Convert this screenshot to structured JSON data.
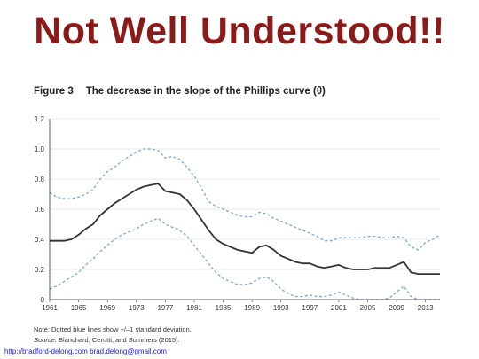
{
  "slide": {
    "title": "Not Well Understood!!"
  },
  "figure": {
    "number": "Figure 3",
    "caption": "The decrease in the slope of the Phillips curve (θ)",
    "note": "Note: Dotted  blue lines show +/–1 standard deviation.",
    "source_label": "Source:",
    "source_text": " Blanchard, Cerutti, and Summers (2015)."
  },
  "footer": {
    "link1": "http://bradford-delong.com",
    "link2": "brad.delong@gmail.com"
  },
  "chart_data": {
    "type": "line",
    "title": "",
    "xlabel": "",
    "ylabel": "",
    "xlim": [
      1961,
      2015
    ],
    "ylim": [
      0,
      1.2
    ],
    "grid": true,
    "x_ticks": [
      "1961",
      "1965",
      "1969",
      "1973",
      "1977",
      "1981",
      "1985",
      "1989",
      "1993",
      "1997",
      "2001",
      "2005",
      "2009",
      "2013"
    ],
    "y_ticks": [
      "0",
      "0.2",
      "0.4",
      "0.6",
      "0.8",
      "1.0",
      "1.2"
    ],
    "colors": {
      "estimate": "#333333",
      "bands": "#7aa8d6"
    },
    "series": [
      {
        "role": "estimate",
        "x": [
          1961,
          1962,
          1963,
          1964,
          1965,
          1966,
          1967,
          1968,
          1969,
          1970,
          1971,
          1972,
          1973,
          1974,
          1975,
          1976,
          1977,
          1978,
          1979,
          1980,
          1981,
          1982,
          1983,
          1984,
          1985,
          1986,
          1987,
          1988,
          1989,
          1990,
          1991,
          1992,
          1993,
          1994,
          1995,
          1996,
          1997,
          1998,
          1999,
          2000,
          2001,
          2002,
          2003,
          2004,
          2005,
          2006,
          2007,
          2008,
          2009,
          2010,
          2011,
          2012,
          2013,
          2014,
          2015
        ],
        "y": [
          0.39,
          0.39,
          0.39,
          0.4,
          0.43,
          0.47,
          0.5,
          0.56,
          0.6,
          0.64,
          0.67,
          0.7,
          0.73,
          0.75,
          0.76,
          0.77,
          0.72,
          0.71,
          0.7,
          0.66,
          0.6,
          0.53,
          0.46,
          0.4,
          0.37,
          0.35,
          0.33,
          0.32,
          0.31,
          0.35,
          0.36,
          0.33,
          0.29,
          0.27,
          0.25,
          0.24,
          0.24,
          0.22,
          0.21,
          0.22,
          0.23,
          0.21,
          0.2,
          0.2,
          0.2,
          0.21,
          0.21,
          0.21,
          0.23,
          0.25,
          0.18,
          0.17,
          0.17,
          0.17,
          0.17
        ]
      },
      {
        "role": "upper",
        "x": [
          1961,
          1962,
          1963,
          1964,
          1965,
          1966,
          1967,
          1968,
          1969,
          1970,
          1971,
          1972,
          1973,
          1974,
          1975,
          1976,
          1977,
          1978,
          1979,
          1980,
          1981,
          1982,
          1983,
          1984,
          1985,
          1986,
          1987,
          1988,
          1989,
          1990,
          1991,
          1992,
          1993,
          1994,
          1995,
          1996,
          1997,
          1998,
          1999,
          2000,
          2001,
          2002,
          2003,
          2004,
          2005,
          2006,
          2007,
          2008,
          2009,
          2010,
          2011,
          2012,
          2013,
          2014,
          2015
        ],
        "y": [
          0.71,
          0.68,
          0.67,
          0.67,
          0.68,
          0.7,
          0.73,
          0.8,
          0.85,
          0.88,
          0.92,
          0.95,
          0.98,
          1.0,
          1.0,
          0.99,
          0.94,
          0.95,
          0.93,
          0.88,
          0.82,
          0.74,
          0.65,
          0.62,
          0.6,
          0.58,
          0.56,
          0.55,
          0.55,
          0.58,
          0.57,
          0.54,
          0.52,
          0.5,
          0.48,
          0.46,
          0.44,
          0.42,
          0.39,
          0.39,
          0.41,
          0.41,
          0.41,
          0.41,
          0.42,
          0.42,
          0.41,
          0.41,
          0.42,
          0.41,
          0.35,
          0.33,
          0.38,
          0.4,
          0.43
        ]
      },
      {
        "role": "lower",
        "x": [
          1961,
          1962,
          1963,
          1964,
          1965,
          1966,
          1967,
          1968,
          1969,
          1970,
          1971,
          1972,
          1973,
          1974,
          1975,
          1976,
          1977,
          1978,
          1979,
          1980,
          1981,
          1982,
          1983,
          1984,
          1985,
          1986,
          1987,
          1988,
          1989,
          1990,
          1991,
          1992,
          1993,
          1994,
          1995,
          1996,
          1997,
          1998,
          1999,
          2000,
          2001,
          2002,
          2003,
          2004,
          2005,
          2006,
          2007,
          2008,
          2009,
          2010,
          2011,
          2012,
          2013,
          2014,
          2015
        ],
        "y": [
          0.07,
          0.09,
          0.12,
          0.15,
          0.18,
          0.23,
          0.27,
          0.32,
          0.36,
          0.4,
          0.43,
          0.45,
          0.47,
          0.5,
          0.52,
          0.54,
          0.5,
          0.48,
          0.46,
          0.42,
          0.36,
          0.3,
          0.24,
          0.18,
          0.14,
          0.12,
          0.1,
          0.1,
          0.11,
          0.14,
          0.15,
          0.12,
          0.07,
          0.04,
          0.02,
          0.02,
          0.03,
          0.02,
          0.02,
          0.03,
          0.05,
          0.03,
          0.01,
          0.0,
          0.0,
          0.0,
          0.0,
          0.01,
          0.05,
          0.09,
          0.02,
          0.0,
          0.0,
          0.0,
          0.0
        ]
      }
    ]
  }
}
